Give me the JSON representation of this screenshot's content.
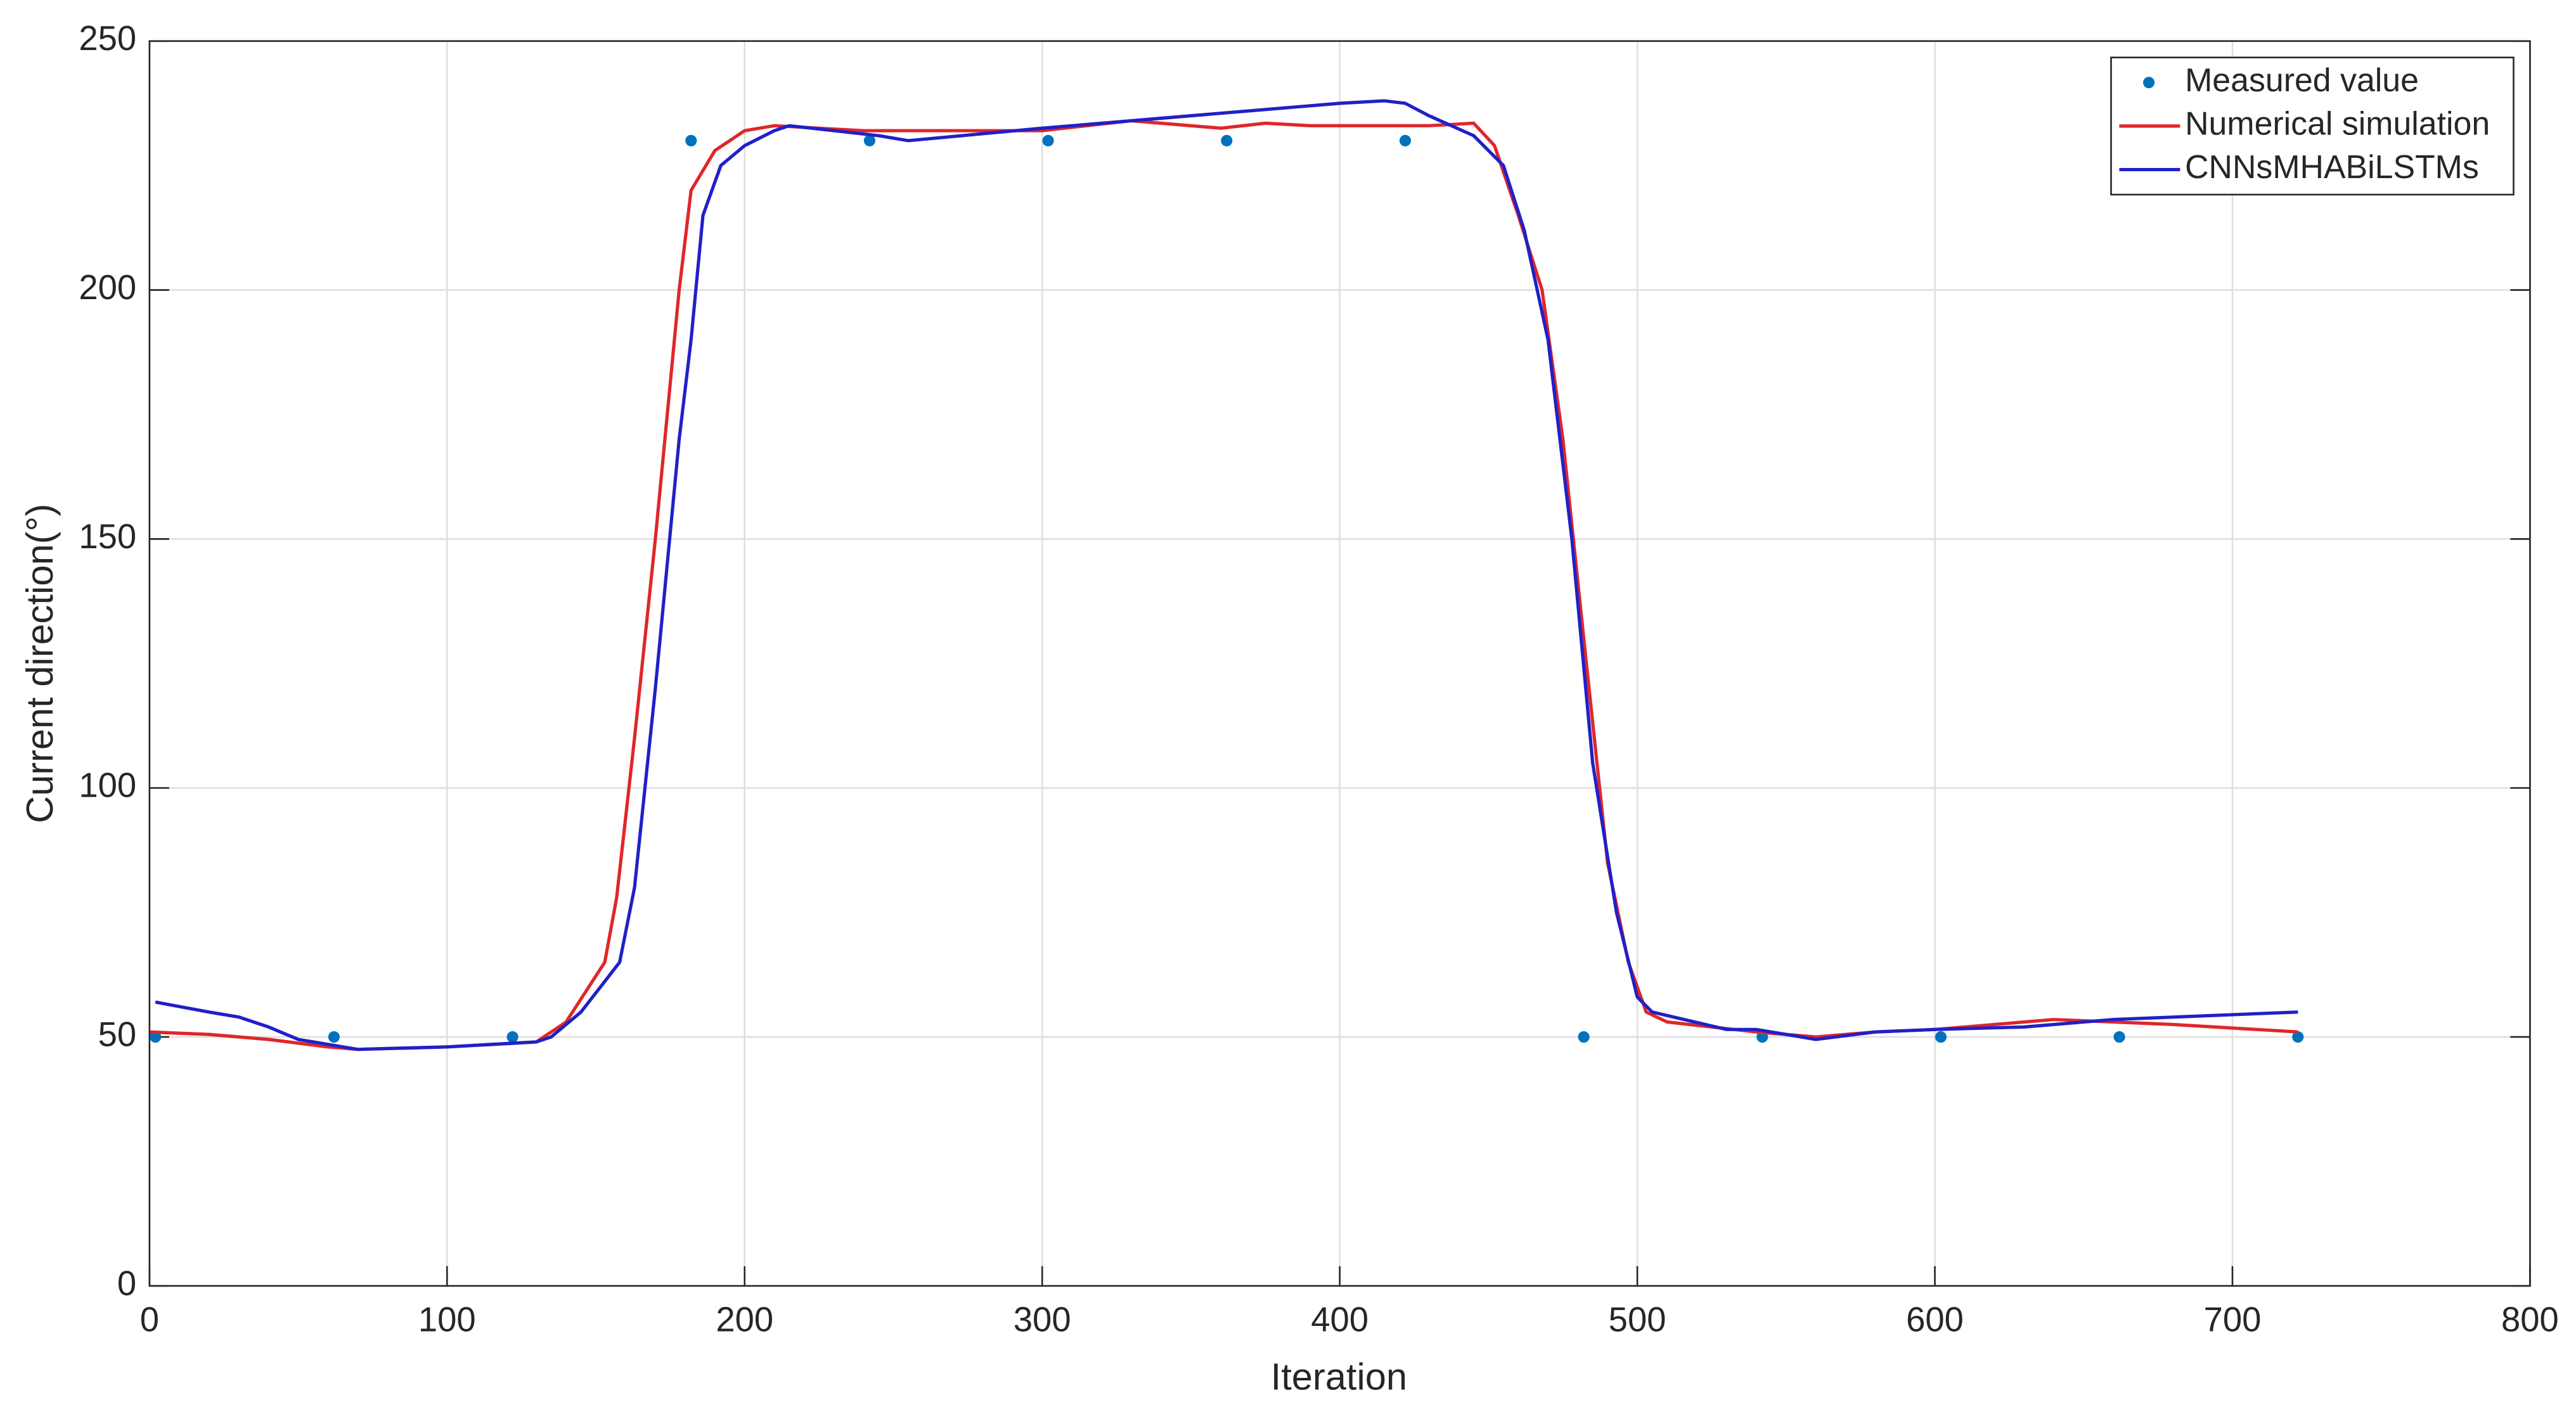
{
  "chart_data": {
    "type": "line",
    "xlabel": "Iteration",
    "ylabel": "Current direction(°)",
    "xlim": [
      0,
      800
    ],
    "ylim": [
      0,
      250
    ],
    "xticks": [
      0,
      100,
      200,
      300,
      400,
      500,
      600,
      700,
      800
    ],
    "yticks": [
      0,
      50,
      100,
      150,
      200,
      250
    ],
    "grid": true,
    "legend": "northeast",
    "series": [
      {
        "name": "Measured value",
        "type": "scatter",
        "color": "#0072bd",
        "x": [
          2,
          62,
          122,
          182,
          242,
          302,
          362,
          422,
          482,
          542,
          602,
          662,
          722
        ],
        "values": [
          50,
          50,
          50,
          230,
          230,
          230,
          230,
          230,
          50,
          50,
          50,
          50,
          50
        ]
      },
      {
        "name": "Numerical simulation",
        "type": "line",
        "color": "#e0262b",
        "x": [
          0,
          20,
          40,
          60,
          70,
          100,
          130,
          140,
          153,
          157,
          163,
          170,
          178,
          182,
          190,
          200,
          210,
          240,
          300,
          330,
          360,
          375,
          390,
          430,
          445,
          452,
          460,
          468,
          475,
          482,
          490,
          497,
          503,
          510,
          540,
          560,
          580,
          600,
          640,
          680,
          722
        ],
        "values": [
          51,
          50.5,
          49.5,
          48,
          47.5,
          48,
          49,
          53,
          65,
          78,
          110,
          150,
          200,
          220,
          228,
          232,
          233,
          232,
          232,
          234,
          232.5,
          233.5,
          233,
          233,
          233.5,
          229,
          215,
          200,
          170,
          130,
          85,
          65,
          55,
          53,
          51,
          50,
          51,
          51.5,
          53.5,
          52.5,
          51
        ]
      },
      {
        "name": "CNNsMHABiLSTMs",
        "type": "line",
        "color": "#2020c8",
        "x": [
          2,
          20,
          30,
          40,
          50,
          70,
          100,
          130,
          135,
          145,
          158,
          163,
          170,
          178,
          182,
          186,
          192,
          200,
          210,
          215,
          230,
          245,
          255,
          300,
          330,
          360,
          400,
          415,
          422,
          430,
          445,
          455,
          462,
          470,
          478,
          485,
          493,
          500,
          505,
          530,
          540,
          560,
          580,
          600,
          630,
          660,
          722
        ],
        "values": [
          57,
          55,
          54,
          52,
          49.5,
          47.5,
          48,
          49,
          50,
          55,
          65,
          80,
          120,
          170,
          190,
          215,
          225,
          229,
          232,
          233,
          232,
          231,
          230,
          232.5,
          234,
          235.5,
          237.5,
          238,
          237.5,
          235,
          231,
          225,
          212,
          190,
          150,
          105,
          75,
          58,
          55,
          51.5,
          51.5,
          49.5,
          51,
          51.5,
          52,
          53.5,
          55
        ]
      }
    ]
  }
}
